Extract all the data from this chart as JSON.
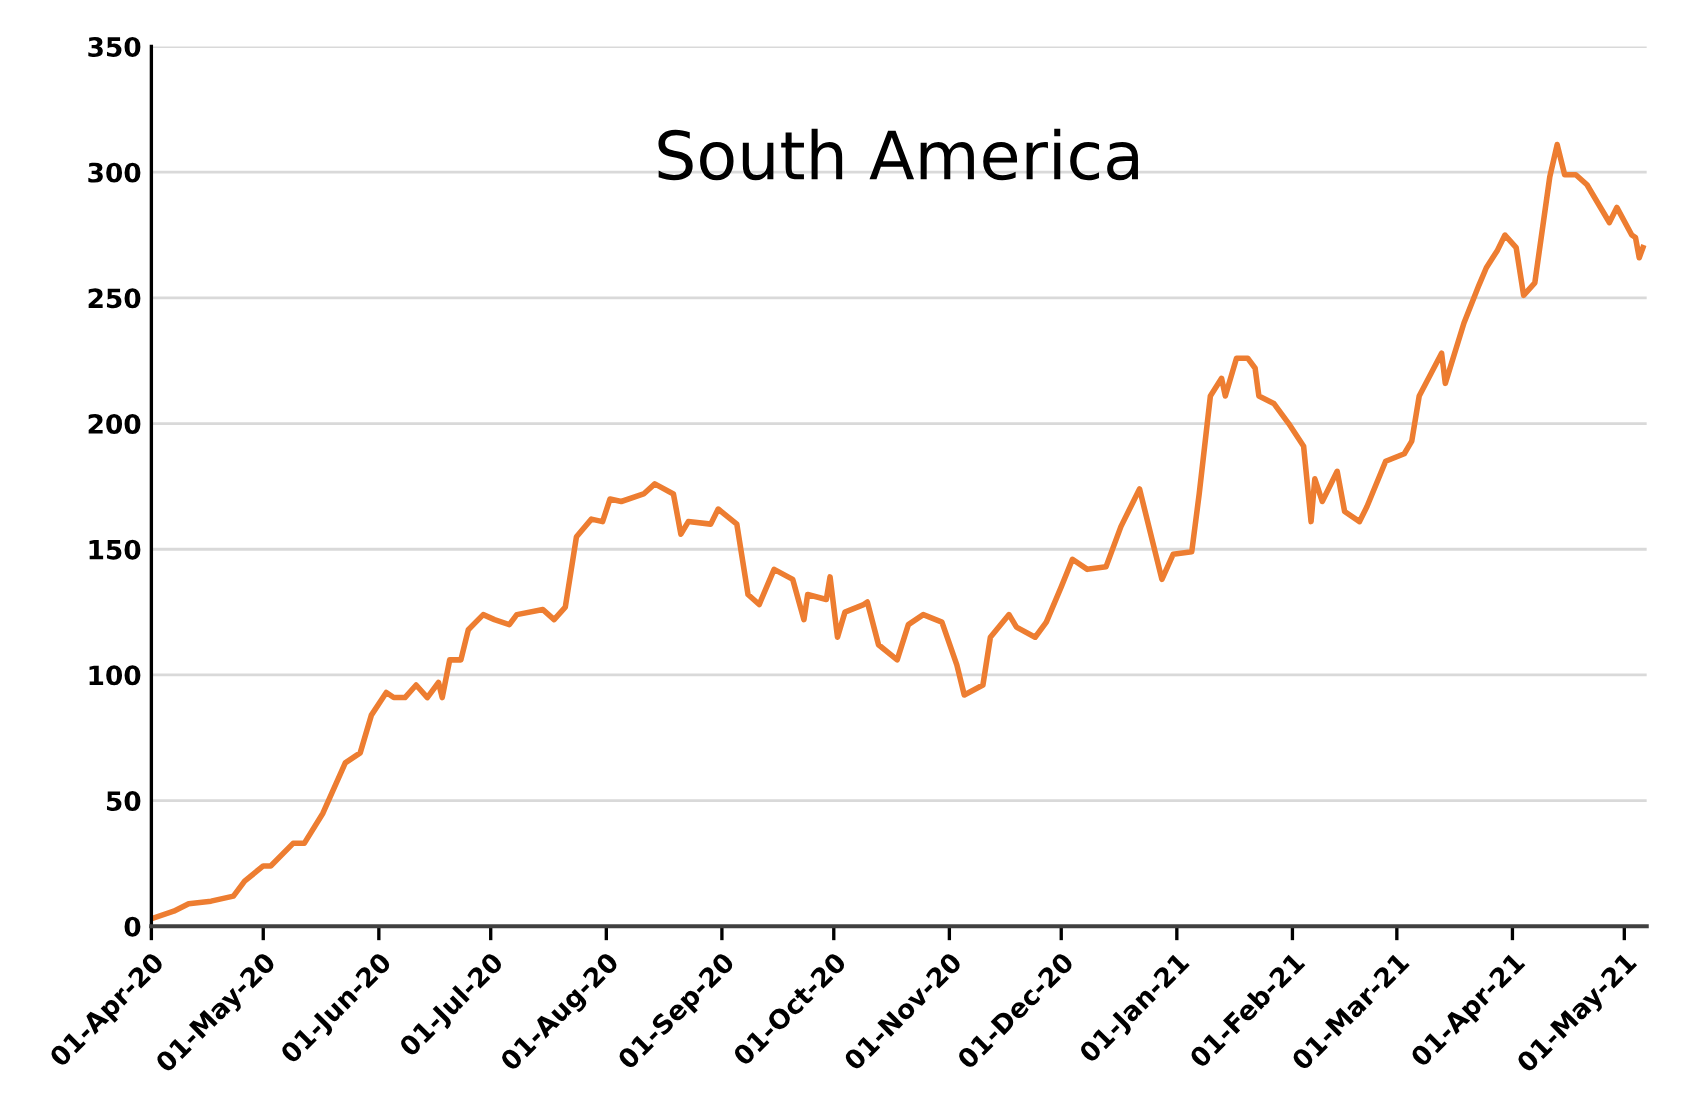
{
  "chart_data": {
    "type": "line",
    "title": "South America",
    "color": "#ed7d31",
    "grid": "y",
    "x": [
      "2020-04-01",
      "2020-04-07",
      "2020-04-11",
      "2020-04-17",
      "2020-04-23",
      "2020-04-26",
      "2020-05-01",
      "2020-05-03",
      "2020-05-09",
      "2020-05-12",
      "2020-05-17",
      "2020-05-23",
      "2020-05-27",
      "2020-05-30",
      "2020-06-03",
      "2020-06-05",
      "2020-06-08",
      "2020-06-11",
      "2020-06-14",
      "2020-06-17",
      "2020-06-18",
      "2020-06-20",
      "2020-06-23",
      "2020-06-25",
      "2020-06-27",
      "2020-06-29",
      "2020-07-02",
      "2020-07-06",
      "2020-07-08",
      "2020-07-15",
      "2020-07-18",
      "2020-07-21",
      "2020-07-24",
      "2020-07-28",
      "2020-07-31",
      "2020-08-02",
      "2020-08-05",
      "2020-08-11",
      "2020-08-14",
      "2020-08-19",
      "2020-08-21",
      "2020-08-23",
      "2020-08-29",
      "2020-08-31",
      "2020-09-05",
      "2020-09-08",
      "2020-09-11",
      "2020-09-15",
      "2020-09-20",
      "2020-09-23",
      "2020-09-24",
      "2020-09-29",
      "2020-09-30",
      "2020-10-02",
      "2020-10-04",
      "2020-10-09",
      "2020-10-10",
      "2020-10-13",
      "2020-10-18",
      "2020-10-21",
      "2020-10-25",
      "2020-10-30",
      "2020-11-03",
      "2020-11-05",
      "2020-11-10",
      "2020-11-12",
      "2020-11-17",
      "2020-11-19",
      "2020-11-24",
      "2020-11-27",
      "2020-12-01",
      "2020-12-04",
      "2020-12-08",
      "2020-12-13",
      "2020-12-17",
      "2020-12-22",
      "2020-12-28",
      "2020-12-31",
      "2021-01-05",
      "2021-01-07",
      "2021-01-10",
      "2021-01-13",
      "2021-01-14",
      "2021-01-17",
      "2021-01-20",
      "2021-01-22",
      "2021-01-23",
      "2021-01-27",
      "2021-01-31",
      "2021-02-04",
      "2021-02-06",
      "2021-02-07",
      "2021-02-09",
      "2021-02-13",
      "2021-02-15",
      "2021-02-19",
      "2021-02-21",
      "2021-02-26",
      "2021-03-03",
      "2021-03-05",
      "2021-03-07",
      "2021-03-13",
      "2021-03-14",
      "2021-03-19",
      "2021-03-23",
      "2021-03-25",
      "2021-03-28",
      "2021-03-30",
      "2021-04-02",
      "2021-04-04",
      "2021-04-07",
      "2021-04-11",
      "2021-04-13",
      "2021-04-15",
      "2021-04-18",
      "2021-04-21",
      "2021-04-27",
      "2021-04-29",
      "2021-05-03",
      "2021-05-04",
      "2021-05-05",
      "2021-05-06"
    ],
    "values": [
      3,
      6,
      9,
      10,
      12,
      18,
      24,
      24,
      33,
      33,
      45,
      65,
      69,
      84,
      93,
      91,
      91,
      96,
      91,
      97,
      91,
      106,
      106,
      118,
      121,
      124,
      122,
      120,
      124,
      126,
      122,
      127,
      155,
      162,
      161,
      170,
      169,
      172,
      176,
      172,
      156,
      161,
      160,
      166,
      160,
      132,
      128,
      142,
      138,
      122,
      132,
      130,
      139,
      115,
      125,
      128,
      129,
      112,
      106,
      120,
      124,
      121,
      104,
      92,
      96,
      115,
      124,
      119,
      115,
      121,
      135,
      146,
      142,
      143,
      159,
      174,
      138,
      148,
      149,
      172,
      211,
      218,
      211,
      226,
      226,
      222,
      211,
      208,
      200,
      191,
      161,
      178,
      169,
      181,
      165,
      161,
      167,
      185,
      188,
      193,
      211,
      228,
      216,
      240,
      255,
      262,
      269,
      275,
      270,
      251,
      256,
      298,
      311,
      299,
      299,
      295,
      280,
      286,
      275,
      274,
      266,
      270
    ],
    "xlim": [
      "2020-04-01",
      "2021-05-07"
    ],
    "xticks": [
      {
        "value": "2020-04-01",
        "label": "01-Apr-20"
      },
      {
        "value": "2020-05-01",
        "label": "01-May-20"
      },
      {
        "value": "2020-06-01",
        "label": "01-Jun-20"
      },
      {
        "value": "2020-07-01",
        "label": "01-Jul-20"
      },
      {
        "value": "2020-08-01",
        "label": "01-Aug-20"
      },
      {
        "value": "2020-09-01",
        "label": "01-Sep-20"
      },
      {
        "value": "2020-10-01",
        "label": "01-Oct-20"
      },
      {
        "value": "2020-11-01",
        "label": "01-Nov-20"
      },
      {
        "value": "2020-12-01",
        "label": "01-Dec-20"
      },
      {
        "value": "2021-01-01",
        "label": "01-Jan-21"
      },
      {
        "value": "2021-02-01",
        "label": "01-Feb-21"
      },
      {
        "value": "2021-03-01",
        "label": "01-Mar-21"
      },
      {
        "value": "2021-04-01",
        "label": "01-Apr-21"
      },
      {
        "value": "2021-05-01",
        "label": "01-May-21"
      }
    ],
    "ylim": [
      0,
      350
    ],
    "yticks": [
      0,
      50,
      100,
      150,
      200,
      250,
      300,
      350
    ],
    "legend": false
  }
}
